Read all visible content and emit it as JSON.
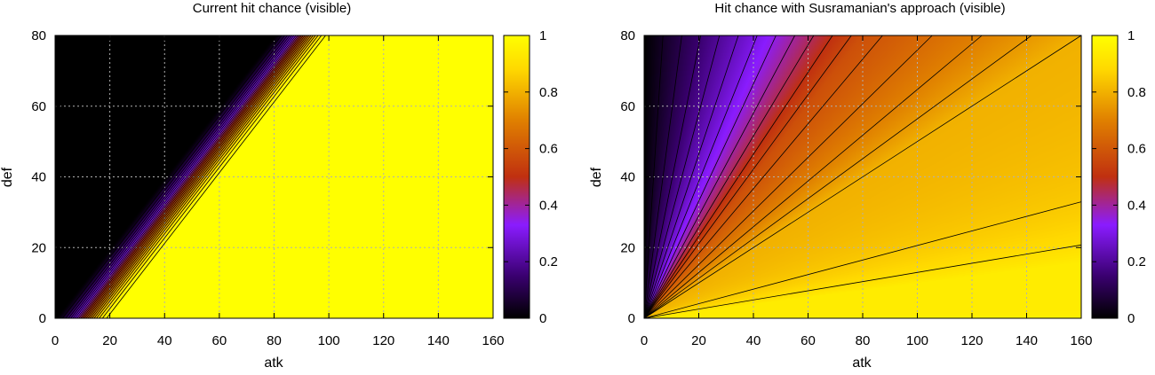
{
  "chart_data": [
    {
      "type": "heatmap",
      "title": "Current hit chance (visible)",
      "xlabel": "atk",
      "ylabel": "def",
      "xlim": [
        0,
        160
      ],
      "ylim": [
        0,
        80
      ],
      "xticks": [
        0,
        20,
        40,
        60,
        80,
        100,
        120,
        140,
        160
      ],
      "yticks": [
        0,
        20,
        40,
        60,
        80
      ],
      "grid": true,
      "colorbar": {
        "range": [
          0,
          1
        ],
        "ticks": [
          0,
          0.2,
          0.4,
          0.6,
          0.8,
          1
        ],
        "tick_labels": [
          "0",
          "0.2",
          "0.4",
          "0.6",
          "0.8",
          "1"
        ]
      },
      "contour_levels": [
        0.05,
        0.1,
        0.15,
        0.2,
        0.25,
        0.3,
        0.35,
        0.4,
        0.45,
        0.5,
        0.55,
        0.6,
        0.65,
        0.7,
        0.75,
        0.8,
        0.85,
        0.9,
        0.95,
        0.99
      ],
      "model": {
        "kind": "difference",
        "zero_line": "atk = def",
        "full_line": "atk = def + 20"
      }
    },
    {
      "type": "heatmap",
      "title": "Hit chance with Susramanian's approach (visible)",
      "xlabel": "atk",
      "ylabel": "def",
      "xlim": [
        0,
        160
      ],
      "ylim": [
        0,
        80
      ],
      "xticks": [
        0,
        20,
        40,
        60,
        80,
        100,
        120,
        140,
        160
      ],
      "yticks": [
        0,
        20,
        40,
        60,
        80
      ],
      "grid": true,
      "colorbar": {
        "range": [
          0,
          1
        ],
        "ticks": [
          0,
          0.2,
          0.4,
          0.6,
          0.8,
          1
        ],
        "tick_labels": [
          "0",
          "0.2",
          "0.4",
          "0.6",
          "0.8",
          "1"
        ]
      },
      "contour_levels": [
        0.05,
        0.1,
        0.15,
        0.2,
        0.25,
        0.3,
        0.35,
        0.4,
        0.45,
        0.5,
        0.55,
        0.6,
        0.65,
        0.7,
        0.75,
        0.8,
        0.85,
        0.9
      ],
      "model": {
        "kind": "ratio",
        "value_at_ratio_0": 0,
        "value_at_ratio_1": 0.58,
        "value_at_ratio_2": 0.8,
        "value_at_ratio_10": 0.94
      }
    }
  ],
  "colors": {
    "colormap": [
      "#000000",
      "#3a0070",
      "#8a1cff",
      "#c03010",
      "#e08000",
      "#ffd800",
      "#ffff00"
    ],
    "contour": "#000000",
    "grid": "#b0b0b0"
  }
}
